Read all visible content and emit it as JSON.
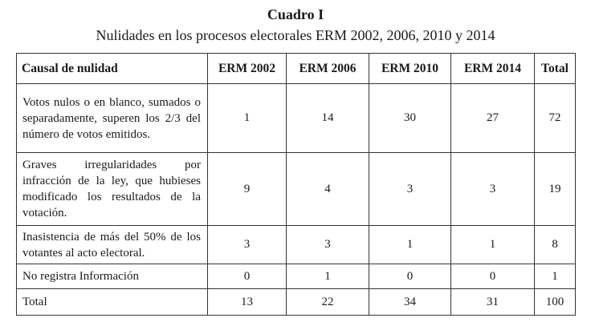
{
  "caption": {
    "label": "Cuadro I",
    "title": "Nulidades en los procesos electorales ERM 2002, 2006, 2010 y 2014"
  },
  "table": {
    "headers": [
      "Causal de nulidad",
      "ERM 2002",
      "ERM 2006",
      "ERM 2010",
      "ERM 2014",
      "Total"
    ],
    "rows": [
      {
        "label": "Votos nulos o en blanco, sumados o separadamente, superen los 2/3 del número de votos emitidos.",
        "values": [
          "1",
          "14",
          "30",
          "27",
          "72"
        ]
      },
      {
        "label": "Graves irregularidades por infracción de la ley, que hubieses modificado los resultados de la votación.",
        "values": [
          "9",
          "4",
          "3",
          "3",
          "19"
        ]
      },
      {
        "label": "Inasistencia de más del 50% de los votantes al acto electoral.",
        "values": [
          "3",
          "3",
          "1",
          "1",
          "8"
        ]
      },
      {
        "label": "No registra Información",
        "values": [
          "0",
          "1",
          "0",
          "0",
          "1"
        ]
      },
      {
        "label": "Total",
        "values": [
          "13",
          "22",
          "34",
          "31",
          "100"
        ]
      }
    ]
  }
}
